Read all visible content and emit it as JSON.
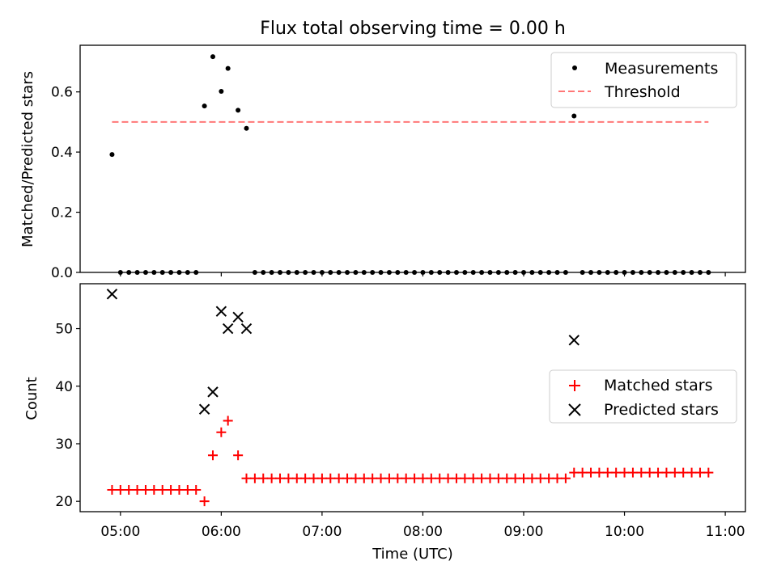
{
  "chart_data": [
    {
      "type": "scatter",
      "title": "Flux total observing time = 0.00 h",
      "xlabel": "",
      "ylabel": "Matched/Predicted stars",
      "ylim": [
        0,
        0.755
      ],
      "yticks": [
        "0.0",
        "0.2",
        "0.4",
        "0.6"
      ],
      "legend_position": "top-right",
      "grid": false,
      "series": [
        {
          "name": "Measurements",
          "kind": "scatter",
          "marker": "dot",
          "color": "#000000",
          "x": [
            "04:55",
            "04:60",
            "05:05",
            "05:10",
            "05:15",
            "05:20",
            "05:25",
            "05:30",
            "05:35",
            "05:40",
            "05:45",
            "05:50",
            "05:55",
            "05:60",
            "06:04",
            "06:10",
            "06:15",
            "06:20",
            "06:25",
            "06:30",
            "06:35",
            "06:40",
            "06:45",
            "06:50",
            "06:55",
            "06:60",
            "07:05",
            "07:10",
            "07:15",
            "07:20",
            "07:25",
            "07:30",
            "07:35",
            "07:40",
            "07:45",
            "07:50",
            "07:55",
            "07:60",
            "08:05",
            "08:10",
            "08:15",
            "08:20",
            "08:25",
            "08:30",
            "08:35",
            "08:40",
            "08:45",
            "08:50",
            "08:55",
            "08:60",
            "09:05",
            "09:10",
            "09:15",
            "09:20",
            "09:25",
            "09:30",
            "09:35",
            "09:40",
            "09:45",
            "09:50",
            "09:55",
            "09:60",
            "10:05",
            "10:10",
            "10:15",
            "10:20",
            "10:25",
            "10:30",
            "10:35",
            "10:40",
            "10:45",
            "10:50"
          ],
          "y": [
            0.392,
            0,
            0,
            0,
            0,
            0,
            0,
            0,
            0,
            0,
            0,
            0.553,
            0.717,
            0.602,
            0.678,
            0.539,
            0.479,
            0,
            0,
            0,
            0,
            0,
            0,
            0,
            0,
            0,
            0,
            0,
            0,
            0,
            0,
            0,
            0,
            0,
            0,
            0,
            0,
            0,
            0,
            0,
            0,
            0,
            0,
            0,
            0,
            0,
            0,
            0,
            0,
            0,
            0,
            0,
            0,
            0,
            0,
            0.52,
            0,
            0,
            0,
            0,
            0,
            0,
            0,
            0,
            0,
            0,
            0,
            0,
            0,
            0,
            0,
            0
          ]
        },
        {
          "name": "Threshold",
          "kind": "line",
          "style": "dashed",
          "color": "#ff7777",
          "x": [
            "04:55",
            "10:50"
          ],
          "y": [
            0.5,
            0.5
          ]
        }
      ]
    },
    {
      "type": "scatter",
      "title": "",
      "xlabel": "Time (UTC)",
      "ylabel": "Count",
      "ylim": [
        18.2,
        57.8
      ],
      "yticks": [
        "20",
        "30",
        "40",
        "50"
      ],
      "xticks": [
        "05:00",
        "06:00",
        "07:00",
        "08:00",
        "09:00",
        "10:00",
        "11:00"
      ],
      "legend_position": "center-right",
      "grid": false,
      "series": [
        {
          "name": "Matched stars",
          "kind": "scatter",
          "marker": "plus",
          "color": "#ff0000",
          "x": [
            "04:55",
            "04:60",
            "05:05",
            "05:10",
            "05:15",
            "05:20",
            "05:25",
            "05:30",
            "05:35",
            "05:40",
            "05:45",
            "05:50",
            "05:55",
            "05:60",
            "06:04",
            "06:10",
            "06:15",
            "06:20",
            "06:25",
            "06:30",
            "06:35",
            "06:40",
            "06:45",
            "06:50",
            "06:55",
            "06:60",
            "07:05",
            "07:10",
            "07:15",
            "07:20",
            "07:25",
            "07:30",
            "07:35",
            "07:40",
            "07:45",
            "07:50",
            "07:55",
            "07:60",
            "08:05",
            "08:10",
            "08:15",
            "08:20",
            "08:25",
            "08:30",
            "08:35",
            "08:40",
            "08:45",
            "08:50",
            "08:55",
            "08:60",
            "09:05",
            "09:10",
            "09:15",
            "09:20",
            "09:25",
            "09:30",
            "09:35",
            "09:40",
            "09:45",
            "09:50",
            "09:55",
            "09:60",
            "10:05",
            "10:10",
            "10:15",
            "10:20",
            "10:25",
            "10:30",
            "10:35",
            "10:40",
            "10:45",
            "10:50"
          ],
          "y": [
            22,
            22,
            22,
            22,
            22,
            22,
            22,
            22,
            22,
            22,
            22,
            20,
            28,
            32,
            34,
            28,
            24,
            24,
            24,
            24,
            24,
            24,
            24,
            24,
            24,
            24,
            24,
            24,
            24,
            24,
            24,
            24,
            24,
            24,
            24,
            24,
            24,
            24,
            24,
            24,
            24,
            24,
            24,
            24,
            24,
            24,
            24,
            24,
            24,
            24,
            24,
            24,
            24,
            24,
            24,
            25,
            25,
            25,
            25,
            25,
            25,
            25,
            25,
            25,
            25,
            25,
            25,
            25,
            25,
            25,
            25,
            25
          ]
        },
        {
          "name": "Predicted stars",
          "kind": "scatter",
          "marker": "x",
          "color": "#000000",
          "x": [
            "04:55",
            "05:50",
            "05:55",
            "05:60",
            "06:04",
            "06:10",
            "06:15",
            "09:30"
          ],
          "y": [
            56,
            36,
            39,
            53,
            50,
            52,
            50,
            48
          ]
        }
      ]
    }
  ],
  "colors": {
    "axes": "#000000",
    "background": "#ffffff",
    "legend_border": "#cccccc"
  }
}
